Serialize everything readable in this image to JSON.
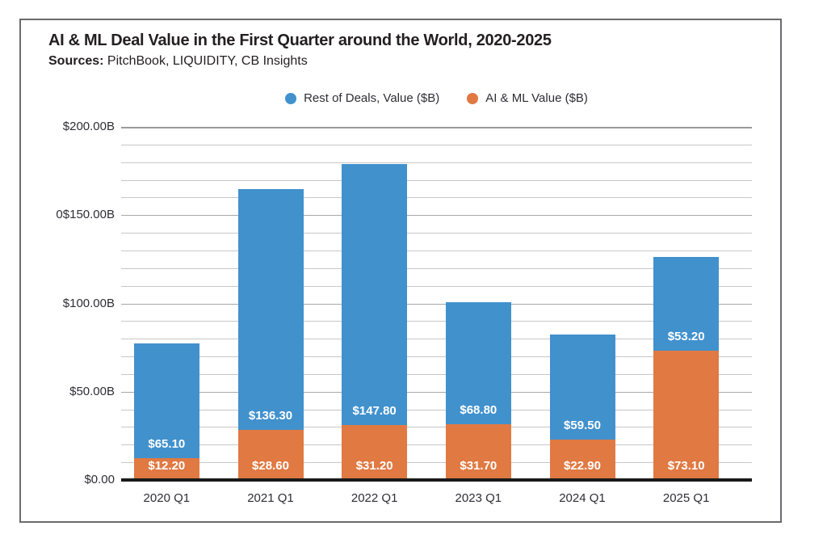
{
  "figure": {
    "title": "AI & ML Deal Value in the First Quarter around the World, 2020-2025",
    "sources_label": "Sources:",
    "sources_text": " PitchBook, LIQUIDITY, CB Insights"
  },
  "legend": [
    {
      "label": "Rest of Deals, Value ($B)",
      "color": "#4191cd"
    },
    {
      "label": "AI & ML Value ($B)",
      "color": "#e07942"
    }
  ],
  "colors": {
    "rest_of_deals": "#4191cd",
    "ai_ml": "#e07942",
    "axis_line": "#1a1a1a",
    "gridline": "#c7c7c7",
    "text": "#2d2d35"
  },
  "chart_data": {
    "type": "bar",
    "stacked": true,
    "title": "AI & ML Deal Value in the First Quarter around the World, 2020-2025",
    "xlabel": "",
    "ylabel": "",
    "categories": [
      "2020 Q1",
      "2021 Q1",
      "2022 Q1",
      "2023 Q1",
      "2024 Q1",
      "2025 Q1"
    ],
    "series": [
      {
        "name": "AI & ML Value ($B)",
        "color": "#e07942",
        "values": [
          12.2,
          28.6,
          31.2,
          31.7,
          22.9,
          73.1
        ],
        "labels": [
          "$12.20",
          "$28.60",
          "$31.20",
          "$31.70",
          "$22.90",
          "$73.10"
        ]
      },
      {
        "name": "Rest of Deals, Value ($B)",
        "color": "#4191cd",
        "values": [
          65.1,
          136.3,
          147.8,
          68.8,
          59.5,
          53.2
        ],
        "labels": [
          "$65.10",
          "$136.30",
          "$147.80",
          "$68.80",
          "$59.50",
          "$53.20"
        ]
      }
    ],
    "totals": [
      77.3,
      164.9,
      179.0,
      100.5,
      82.4,
      126.3
    ],
    "ylim": [
      0,
      200
    ],
    "y_axis": {
      "minor_step": 10,
      "major_step": 50,
      "ticks": [
        {
          "value": 0,
          "label": "$0.00"
        },
        {
          "value": 50,
          "label": "$50.00B"
        },
        {
          "value": 100,
          "label": "$100.00B"
        },
        {
          "value": 150,
          "label": "0$150.00B"
        },
        {
          "value": 200,
          "label": "$200.00B"
        }
      ]
    },
    "grid": true,
    "legend_position": "top-center"
  }
}
